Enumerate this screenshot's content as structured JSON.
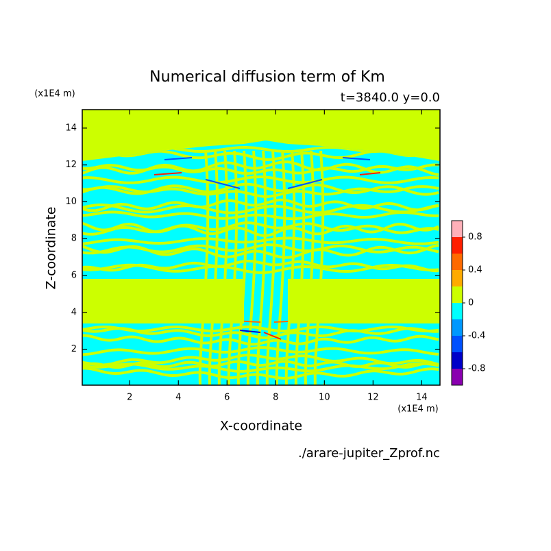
{
  "chart_data": {
    "type": "contour",
    "title": "Numerical diffusion term of Km",
    "subtitle": "t=3840.0 y=0.0",
    "x_label": "X-coordinate",
    "y_label": "Z-coordinate",
    "x_unit": "(x1E4 m)",
    "y_unit": "(x1E4 m)",
    "source": "./arare-jupiter_Zprof.nc",
    "xlim": [
      0.05,
      14.75
    ],
    "ylim": [
      0.05,
      15
    ],
    "xticks": [
      2,
      4,
      6,
      8,
      10,
      12,
      14
    ],
    "yticks": [
      2,
      4,
      6,
      8,
      10,
      12,
      14
    ],
    "colorbar": {
      "levels": [
        -1,
        -0.8,
        -0.6,
        -0.4,
        -0.2,
        0,
        0.2,
        0.4,
        0.6,
        0.8,
        1
      ],
      "colors": [
        "#8a00b0",
        "#0000c8",
        "#0050ff",
        "#0098ff",
        "#00ffff",
        "#ccff00",
        "#ffaa00",
        "#ff6a00",
        "#ff1e00",
        "#ffb0b8"
      ],
      "ticks": [
        -0.8,
        -0.4,
        0,
        0.4,
        0.8
      ]
    }
  }
}
